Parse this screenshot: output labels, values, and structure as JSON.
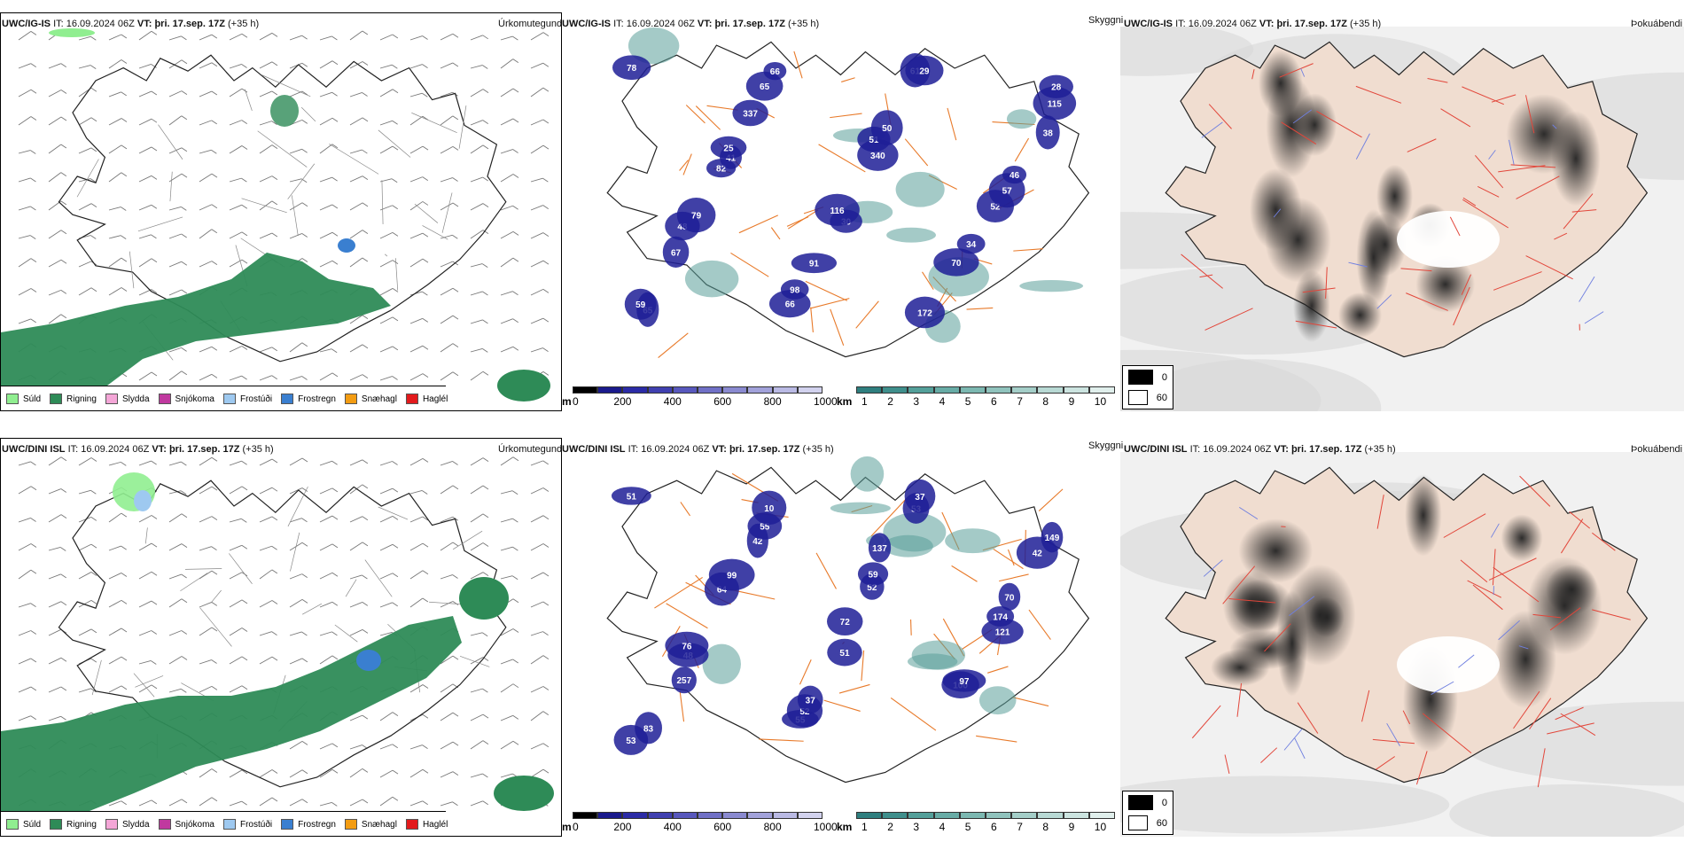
{
  "rows": [
    {
      "id": "top",
      "precip": {
        "model": "UWC/IG-IS",
        "it_label": "IT:",
        "it_value": "16.09.2024 06Z",
        "vt_label": "VT:",
        "vt_value": "þri. 17.sep. 17Z",
        "lead": "(+35 h)",
        "right_title": "Úrkomutegund"
      },
      "cloud": {
        "model": "UWC/IG-IS",
        "it_label": "IT:",
        "it_value": "16.09.2024 06Z",
        "vt_label": "VT:",
        "vt_value": "þri. 17.sep. 17Z",
        "lead": "(+35 h)",
        "right_title": "Skyggni",
        "labels": [
          "78",
          "337",
          "340",
          "52",
          "67",
          "66",
          "61",
          "38",
          "82",
          "30",
          "70",
          "65",
          "65",
          "51",
          "57",
          "48",
          "98",
          "29",
          "115",
          "41",
          "116",
          "34",
          "59",
          "66",
          "50",
          "46",
          "79",
          "91",
          "172",
          "28",
          "25"
        ]
      },
      "fog": {
        "model": "UWC/IG-IS",
        "it_label": "IT:",
        "it_value": "16.09.2024 06Z",
        "vt_label": "VT:",
        "vt_value": "þri. 17.sep. 17Z",
        "lead": "(+35 h)",
        "right_title": "Þokuábendi"
      }
    },
    {
      "id": "bottom",
      "precip": {
        "model": "UWC/DINI ISL",
        "it_label": "IT:",
        "it_value": "16.09.2024 06Z",
        "vt_label": "VT:",
        "vt_value": "þri. 17.sep. 17Z",
        "lead": "(+35 h)",
        "right_title": "Úrkomutegund"
      },
      "cloud": {
        "model": "UWC/DINI ISL",
        "it_label": "IT:",
        "it_value": "16.09.2024 06Z",
        "vt_label": "VT:",
        "vt_value": "þri. 17.sep. 17Z",
        "lead": "(+35 h)",
        "right_title": "Skyggni",
        "labels": [
          "51",
          "42",
          "52",
          "121",
          "257",
          "55",
          "53",
          "42",
          "64",
          "51",
          "100",
          "53",
          "55",
          "59",
          "174",
          "48",
          "52",
          "37",
          "149",
          "99",
          "72",
          "97",
          "83",
          "10",
          "137",
          "70",
          "76",
          "37"
        ]
      },
      "fog": {
        "model": "UWC/DINI ISL",
        "it_label": "IT:",
        "it_value": "16.09.2024 06Z",
        "vt_label": "VT:",
        "vt_value": "þri. 17.sep. 17Z",
        "lead": "(+35 h)",
        "right_title": "Þokuábendi"
      }
    }
  ],
  "precip_legend": [
    {
      "label": "Súld",
      "color": "#90ee90"
    },
    {
      "label": "Rigning",
      "color": "#2e8b57"
    },
    {
      "label": "Slydda",
      "color": "#f4a6d7"
    },
    {
      "label": "Snjókoma",
      "color": "#c0399f"
    },
    {
      "label": "Frostúði",
      "color": "#9ec9f0"
    },
    {
      "label": "Frostregn",
      "color": "#3a7fd0"
    },
    {
      "label": "Snæhagl",
      "color": "#f39c12"
    },
    {
      "label": "Haglél",
      "color": "#e31a1c"
    }
  ],
  "ceiling_bar": {
    "unit": "m",
    "ticks": [
      "0",
      "200",
      "400",
      "600",
      "800",
      "1000"
    ],
    "colors": [
      "#000000",
      "#1a1a8c",
      "#2b2ba6",
      "#4040b0",
      "#5858bd",
      "#7070c6",
      "#8a8ad0",
      "#a2a2da",
      "#babae4",
      "#d2d2ee"
    ]
  },
  "vis_bar": {
    "unit": "km",
    "ticks": [
      "1",
      "2",
      "3",
      "4",
      "5",
      "6",
      "7",
      "8",
      "9",
      "10"
    ],
    "colors": [
      "#2f7f7f",
      "#3f8f8c",
      "#54a09a",
      "#68aca6",
      "#7cb8b1",
      "#90c3bd",
      "#a4cec8",
      "#b8d9d4",
      "#cce4e0",
      "#e0efec"
    ]
  },
  "fog_legend": [
    {
      "label": "0",
      "color": "#000000"
    },
    {
      "label": "60",
      "color": "#ffffff"
    }
  ],
  "colors": {
    "rain": "#2e8b57",
    "drizzle": "#90ee90",
    "frz_drizzle": "#9ec9f0",
    "frz_rain": "#3a7fd0",
    "ceiling": "#1e1e96",
    "vis": "#5a9f99",
    "roads": "#e87a2a",
    "land_fog": "#f0ddd0",
    "coast": "#222222"
  }
}
